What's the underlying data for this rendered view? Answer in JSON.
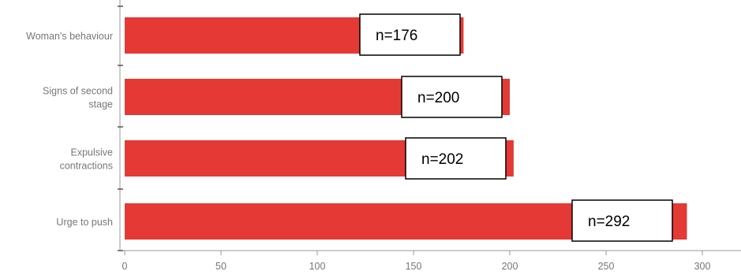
{
  "colors": {
    "bar": "#e53935",
    "axis": "#999999",
    "tick_text": "#777777",
    "annotation_border": "#000000"
  },
  "chart_data": {
    "type": "bar",
    "orientation": "horizontal",
    "categories": [
      [
        "Woman's behaviour"
      ],
      [
        "Signs of second",
        "stage"
      ],
      [
        "Expulsive",
        "contractions"
      ],
      [
        "Urge to push"
      ]
    ],
    "values": [
      176,
      200,
      202,
      292
    ],
    "annotations": [
      "n=176",
      "n=200",
      "n=202",
      "n=292"
    ],
    "xlim": [
      0,
      300
    ],
    "xticks": [
      0,
      50,
      100,
      150,
      200,
      250,
      300
    ],
    "grid": false
  }
}
